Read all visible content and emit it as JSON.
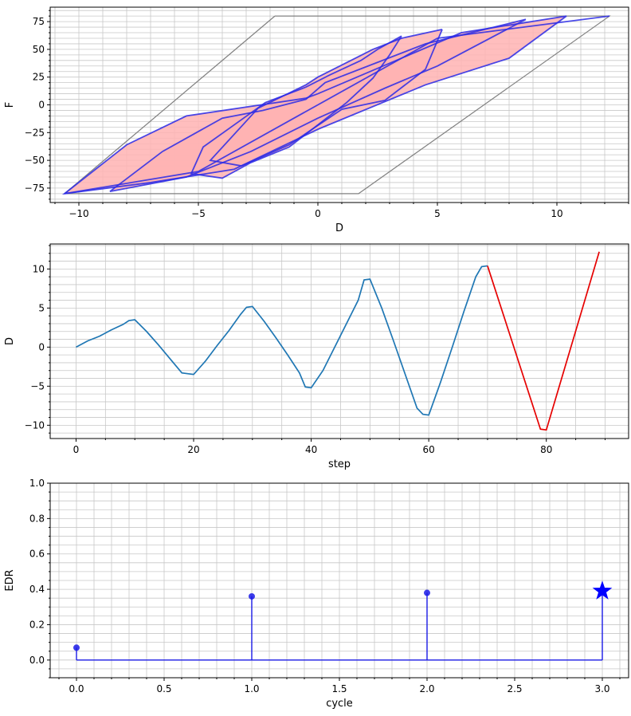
{
  "colors": {
    "hysteresis_line": "#2a2ae6",
    "hysteresis_fill": "#ffb3b3",
    "envelope": "#808080",
    "history_line": "#1f77b4",
    "history_highlight": "#e60000",
    "stem": "#1a1ae6",
    "marker": "#0000ff",
    "grid": "#c8c8c8"
  },
  "chart_data": [
    {
      "type": "line",
      "xlabel": "D",
      "ylabel": "F",
      "xlim": [
        -11.2,
        13.0
      ],
      "ylim": [
        -88,
        88
      ],
      "xticks": [
        -10,
        -5,
        0,
        5,
        10
      ],
      "yticks": [
        -75,
        -50,
        -25,
        0,
        25,
        50,
        75
      ],
      "grid": true,
      "envelope": {
        "x": [
          -1.8,
          12.2,
          12.2,
          1.7,
          -10.6,
          -10.6,
          -1.8
        ],
        "y": [
          80,
          80,
          80,
          -80,
          -80,
          -80,
          80
        ]
      },
      "loops": [
        {
          "x": [
            3.5,
            2.5,
            1.8,
            0.5,
            -0.5,
            -2.2,
            -3.5,
            -4.8,
            -5.3,
            -4.0,
            -2.8,
            -1.2,
            0.0,
            1.2,
            2.3,
            3.0,
            3.5
          ],
          "y": [
            62,
            50,
            40,
            27,
            16,
            2,
            -18,
            -38,
            -62,
            -66,
            -52,
            -38,
            -18,
            2,
            24,
            45,
            62
          ]
        },
        {
          "x": [
            5.2,
            3.5,
            2.3,
            0.0,
            -0.5,
            -2.5,
            -4.5,
            -3.2,
            -1.2,
            1.0,
            2.8,
            4.5,
            5.2
          ],
          "y": [
            68,
            60,
            50,
            25,
            18,
            -3,
            -50,
            -55,
            -36,
            -4,
            4,
            32,
            68
          ]
        },
        {
          "x": [
            8.7,
            4.5,
            0.3,
            -0.5,
            -2.3,
            -4.0,
            -6.5,
            -8.7,
            -5.5,
            -2.8,
            0.0,
            2.8,
            5.0,
            8.7
          ],
          "y": [
            77,
            55,
            20,
            5,
            -5,
            -12,
            -42,
            -78,
            -65,
            -42,
            -12,
            15,
            35,
            77
          ]
        },
        {
          "x": [
            10.4,
            6.0,
            0.0,
            -0.5,
            -5.5,
            -8.0,
            -10.6,
            -7.0,
            -3.5,
            0.0,
            4.5,
            8.0,
            10.4
          ],
          "y": [
            80,
            65,
            10,
            6,
            -10,
            -36,
            -80,
            -70,
            -58,
            -22,
            18,
            42,
            80
          ]
        },
        {
          "x": [
            -10.6,
            -5.0,
            0.0,
            5.0,
            12.2
          ],
          "y": [
            -80,
            -60,
            0,
            60,
            80
          ]
        }
      ]
    },
    {
      "type": "line",
      "xlabel": "step",
      "ylabel": "D",
      "xlim": [
        -4.4,
        94.0
      ],
      "ylim": [
        -11.7,
        13.2
      ],
      "xticks": [
        0,
        20,
        40,
        60,
        80
      ],
      "yticks": [
        -10,
        -5,
        0,
        5,
        10
      ],
      "grid": true,
      "series": [
        {
          "x": [
            0,
            2,
            4,
            6,
            8,
            9,
            10,
            12,
            14,
            16,
            18,
            19,
            20,
            22,
            24,
            26,
            28,
            29,
            30,
            32,
            34,
            36,
            38,
            39,
            40,
            42,
            44,
            46,
            48,
            49,
            50,
            52,
            54,
            56,
            58,
            59,
            60,
            62,
            64,
            66,
            68,
            69,
            70
          ],
          "y": [
            0,
            0.8,
            1.4,
            2.2,
            2.9,
            3.4,
            3.5,
            2.0,
            0.3,
            -1.5,
            -3.3,
            -3.4,
            -3.5,
            -1.8,
            0.2,
            2.1,
            4.2,
            5.1,
            5.2,
            3.3,
            1.2,
            -1.0,
            -3.3,
            -5.1,
            -5.2,
            -3.0,
            0.0,
            3.0,
            6.0,
            8.6,
            8.7,
            5.0,
            0.8,
            -3.5,
            -7.8,
            -8.6,
            -8.7,
            -4.5,
            0.0,
            4.6,
            9.0,
            10.3,
            10.4
          ]
        },
        {
          "x": [
            70,
            79,
            80,
            89
          ],
          "y": [
            10.4,
            -10.5,
            -10.6,
            12.2
          ]
        }
      ]
    },
    {
      "type": "scatter",
      "xlabel": "cycle",
      "ylabel": "EDR",
      "xlim": [
        -0.15,
        3.15
      ],
      "ylim": [
        -0.1,
        1.0
      ],
      "xticks": [
        0.0,
        0.5,
        1.0,
        1.5,
        2.0,
        2.5,
        3.0
      ],
      "yticks": [
        0.0,
        0.2,
        0.4,
        0.6,
        0.8,
        1.0
      ],
      "grid": true,
      "x": [
        0,
        1,
        2,
        3
      ],
      "values": [
        0.07,
        0.36,
        0.38,
        0.39
      ]
    }
  ]
}
